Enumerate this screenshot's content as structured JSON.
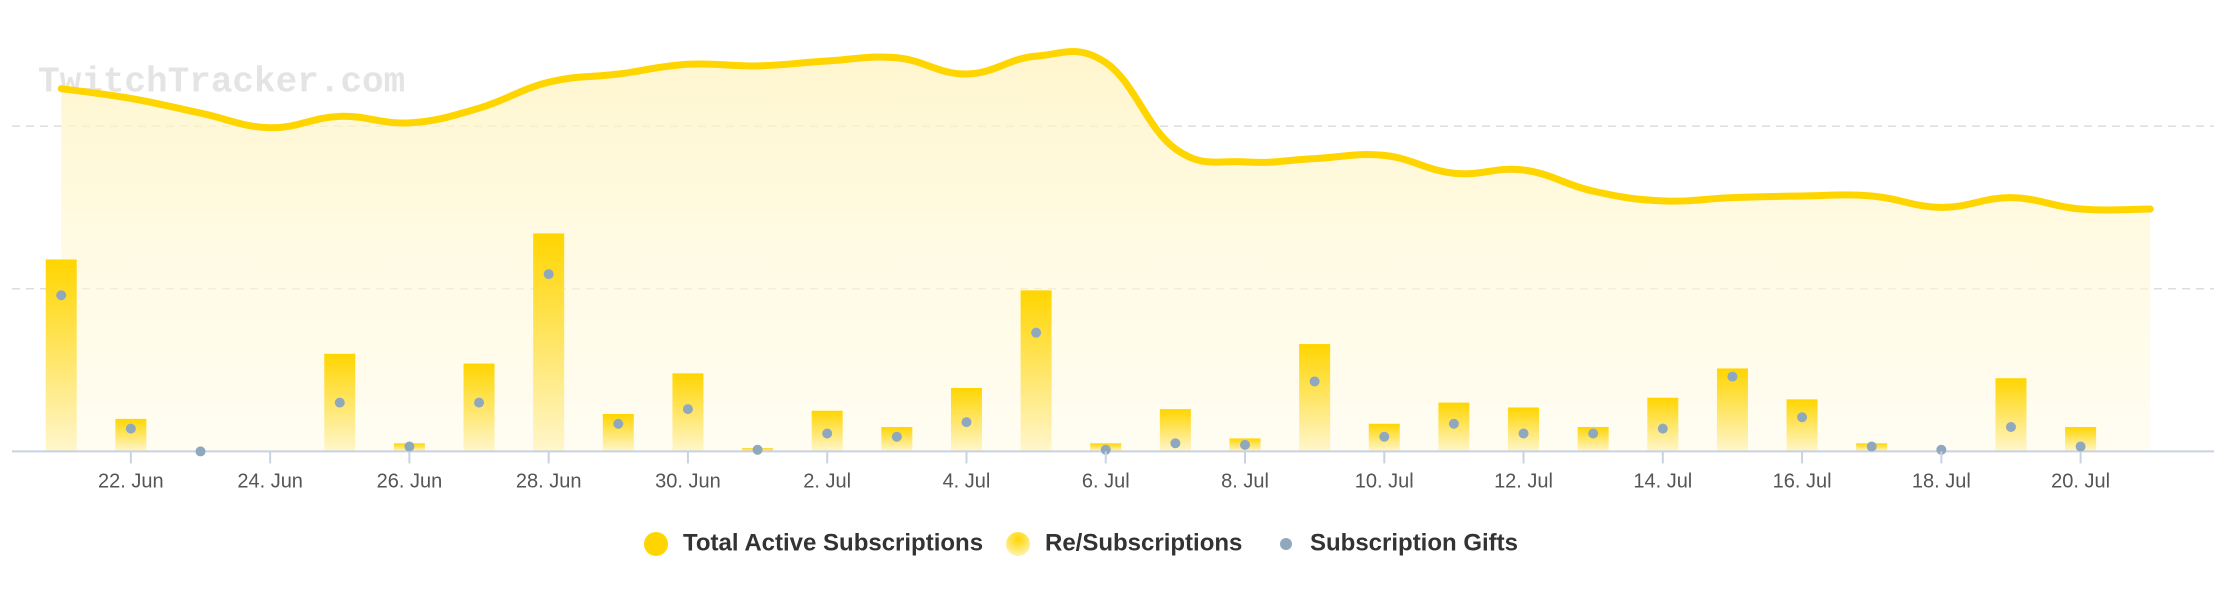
{
  "chart_data": {
    "type": "bar-line",
    "watermark": "TwitchTracker.com",
    "categories": [
      null,
      "22. Jun",
      null,
      "24. Jun",
      null,
      "26. Jun",
      null,
      "28. Jun",
      null,
      "30. Jun",
      null,
      "2. Jul",
      null,
      "4. Jul",
      null,
      "6. Jul",
      null,
      "8. Jul",
      null,
      "10. Jul",
      null,
      "12. Jul",
      null,
      "14. Jul",
      null,
      "16. Jul",
      null,
      "18. Jul",
      null,
      "20. Jul",
      null
    ],
    "series": [
      {
        "name": "Total Active Subscriptions",
        "color": "#ffd500",
        "kind": "line",
        "values": [
          223,
          217,
          208,
          199,
          206,
          202,
          211,
          227,
          232,
          238,
          237,
          240,
          242,
          232,
          243,
          239,
          186,
          178,
          180,
          182,
          171,
          173,
          160,
          154,
          156,
          157,
          157,
          150,
          156,
          149,
          149
        ]
      },
      {
        "name": "Re/Subscriptions",
        "color": "#ffd500",
        "kind": "bar",
        "values": [
          118,
          20,
          0,
          0,
          60,
          5,
          54,
          134,
          23,
          48,
          2,
          25,
          15,
          39,
          99,
          5,
          26,
          8,
          66,
          17,
          30,
          27,
          15,
          33,
          51,
          32,
          5,
          0,
          45,
          15,
          null
        ]
      },
      {
        "name": "Subscription Gifts",
        "color": "#8fa8bd",
        "kind": "dot",
        "values": [
          96,
          14,
          0,
          null,
          30,
          3,
          30,
          109,
          17,
          26,
          1,
          11,
          9,
          18,
          73,
          1,
          5,
          4,
          43,
          9,
          17,
          11,
          11,
          14,
          46,
          21,
          3,
          1,
          15,
          3,
          null
        ]
      }
    ],
    "ylim": [
      0,
      260
    ],
    "yticks": [
      100,
      200
    ],
    "grid": true
  }
}
